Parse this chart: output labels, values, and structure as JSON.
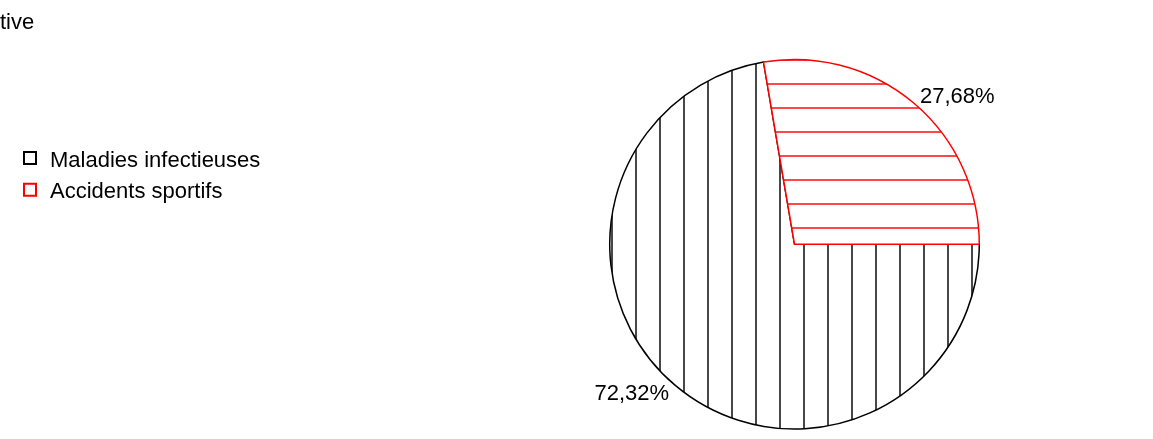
{
  "chart_data": {
    "type": "pie",
    "title": "tive",
    "categories": [
      "Maladies infectieuses",
      "Accidents sportifs"
    ],
    "values": [
      72.32,
      27.68
    ],
    "colors": [
      "#000000",
      "#ff0000"
    ],
    "value_labels": [
      "72,32%",
      "27,68%"
    ],
    "legend": "left"
  }
}
